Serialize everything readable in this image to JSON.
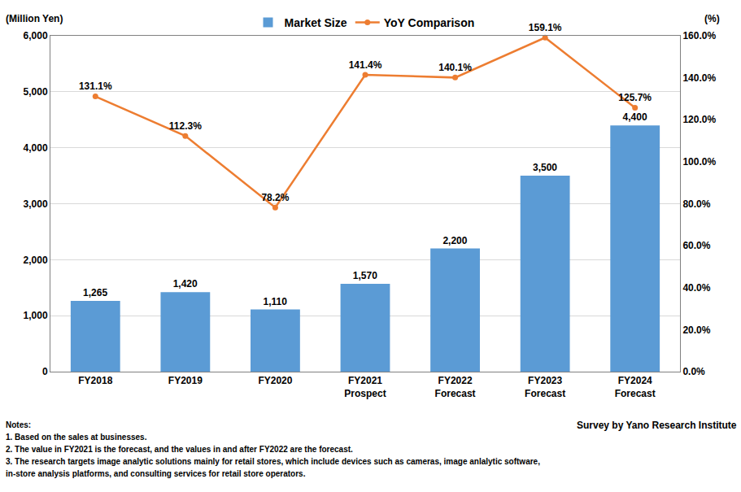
{
  "chart_data": {
    "type": "bar",
    "ylabel": "(Million Yen)",
    "y2label": "(%)",
    "categories": [
      "FY2018",
      "FY2019",
      "FY2020",
      "FY2021\nProspect",
      "FY2022\nForecast",
      "FY2023\nForecast",
      "FY2024\nForecast"
    ],
    "series": [
      {
        "name": "Market Size",
        "type": "bar",
        "color": "#5b9bd5",
        "values": [
          1265,
          1420,
          1110,
          1570,
          2200,
          3500,
          4400
        ],
        "value_labels": [
          "1,265",
          "1,420",
          "1,110",
          "1,570",
          "2,200",
          "3,500",
          "4,400"
        ]
      },
      {
        "name": "YoY Comparison",
        "type": "line",
        "axis": "y2",
        "color": "#ed7d31",
        "marker": "circle",
        "values": [
          131.1,
          112.3,
          78.2,
          141.4,
          140.1,
          159.1,
          125.7
        ],
        "value_labels": [
          "131.1%",
          "112.3%",
          "78.2%",
          "141.4%",
          "140.1%",
          "159.1%",
          "125.7%"
        ]
      }
    ],
    "ylim": [
      0,
      6000
    ],
    "yticks": [
      0,
      {
        "value": 1000,
        "label": "1,000"
      },
      {
        "value": 2000,
        "label": "2,000"
      },
      {
        "value": 3000,
        "label": "3,000"
      },
      {
        "value": 4000,
        "label": "4,000"
      },
      {
        "value": 5000,
        "label": "5,000"
      },
      {
        "value": 6000,
        "label": "6,000"
      }
    ],
    "y2lim": [
      0,
      160
    ],
    "y2ticks": [
      {
        "value": 0,
        "label": "0.0%"
      },
      {
        "value": 20,
        "label": "20.0%"
      },
      {
        "value": 40,
        "label": "40.0%"
      },
      {
        "value": 60,
        "label": "60.0%"
      },
      {
        "value": 80,
        "label": "80.0%"
      },
      {
        "value": 100,
        "label": "100.0%"
      },
      {
        "value": 120,
        "label": "120.0%"
      },
      {
        "value": 140,
        "label": "140.0%"
      },
      {
        "value": 160,
        "label": "160.0%"
      }
    ],
    "grid": true,
    "legend": "top",
    "data_labels": true,
    "notes": [
      "Notes:",
      "1. Based on the sales at businesses.",
      "2. The value in FY2021 is the forecast, and the values in and after FY2022 are the forecast.",
      "3. The research targets image analytic solutions mainly for retail stores, which include devices such as cameras, image anlalytic software,",
      "in-store analysis platforms, and consulting services for retail store operators."
    ],
    "source": "Survey by Yano Research Institute"
  }
}
